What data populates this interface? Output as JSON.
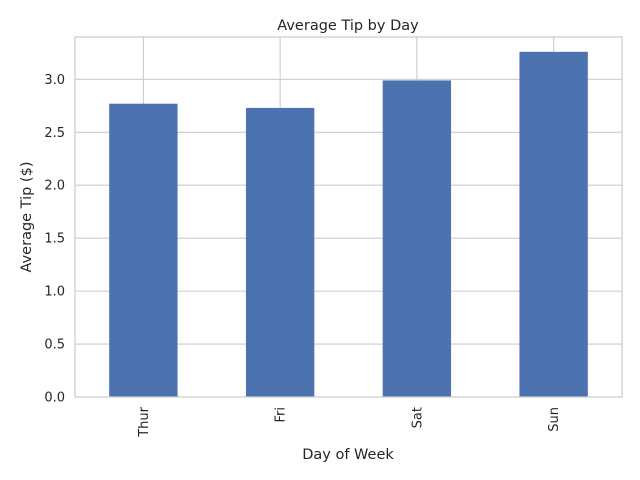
{
  "chart_data": {
    "type": "bar",
    "title": "Average Tip by Day",
    "xlabel": "Day of Week",
    "ylabel": "Average Tip ($)",
    "categories": [
      "Thur",
      "Fri",
      "Sat",
      "Sun"
    ],
    "values": [
      2.77,
      2.73,
      2.99,
      3.26
    ],
    "ylim": [
      0,
      3.4
    ],
    "yticks": [
      0.0,
      0.5,
      1.0,
      1.5,
      2.0,
      2.5,
      3.0
    ],
    "ytick_labels": [
      "0.0",
      "0.5",
      "1.0",
      "1.5",
      "2.0",
      "2.5",
      "3.0"
    ],
    "grid": true,
    "legend": "none",
    "bar_color": "#4c72b0",
    "grid_color": "#cccccc",
    "spine_color": "#cccccc",
    "text_color": "#262626"
  }
}
